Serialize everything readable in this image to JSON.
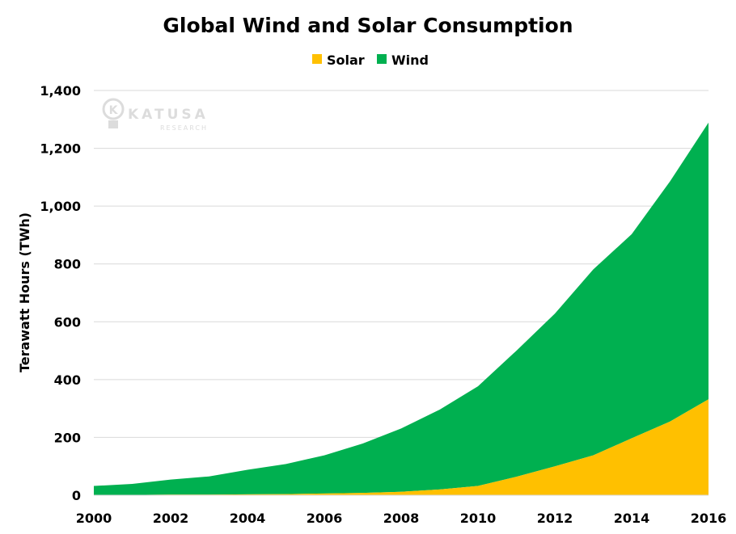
{
  "chart_data": {
    "type": "area",
    "stacked": true,
    "title": "Global Wind and Solar Consumption",
    "ylabel": "Terawatt Hours (TWh)",
    "xlabel": "",
    "x": [
      2000,
      2001,
      2002,
      2003,
      2004,
      2005,
      2006,
      2007,
      2008,
      2009,
      2010,
      2011,
      2012,
      2013,
      2014,
      2015,
      2016
    ],
    "x_tick_labels": [
      "2000",
      "2002",
      "2004",
      "2006",
      "2008",
      "2010",
      "2012",
      "2014",
      "2016"
    ],
    "ylim": [
      0,
      1400
    ],
    "y_tick_labels": [
      "0",
      "200",
      "400",
      "600",
      "800",
      "1,000",
      "1,200",
      "1,400"
    ],
    "y_ticks": [
      0,
      200,
      400,
      600,
      800,
      1000,
      1200,
      1400
    ],
    "series": [
      {
        "name": "Solar",
        "color": "#ffc000",
        "values": [
          1,
          1,
          2,
          2,
          3,
          4,
          6,
          8,
          12,
          20,
          32,
          64,
          100,
          138,
          197,
          255,
          332
        ]
      },
      {
        "name": "Wind",
        "color": "#00b050",
        "values": [
          31,
          38,
          52,
          63,
          85,
          104,
          132,
          171,
          219,
          276,
          345,
          436,
          528,
          643,
          706,
          831,
          957
        ]
      }
    ],
    "legend_position": "top-center",
    "grid": true,
    "watermark": {
      "brand": "KATUSA",
      "sub": "RESEARCH",
      "letter": "K"
    }
  }
}
